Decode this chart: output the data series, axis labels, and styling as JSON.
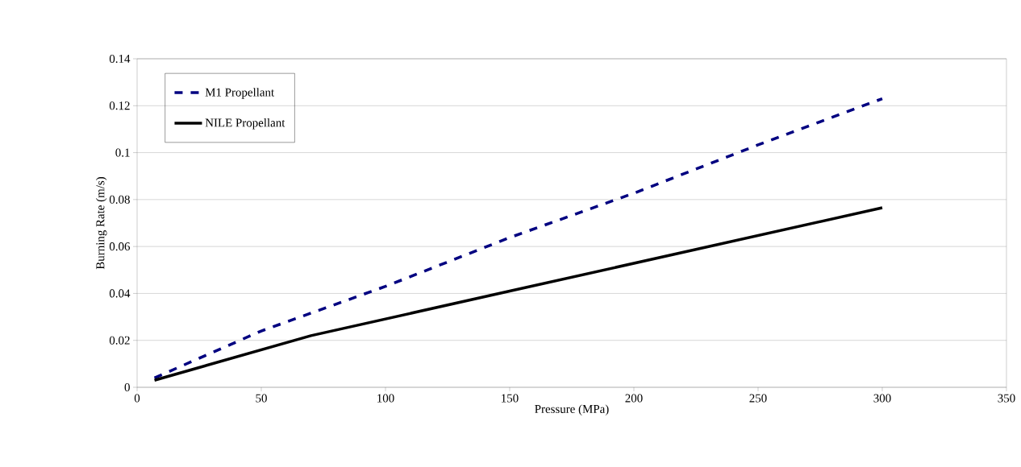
{
  "chart_data": {
    "type": "line",
    "xlabel": "Pressure (MPa)",
    "ylabel": "Burning Rate (m/s)",
    "xlim": [
      0,
      350
    ],
    "ylim": [
      0,
      0.14
    ],
    "xticks": [
      0,
      50,
      100,
      150,
      200,
      250,
      300,
      350
    ],
    "yticks": [
      0,
      0.02,
      0.04,
      0.06,
      0.08,
      0.1,
      0.12,
      0.14
    ],
    "grid": "y",
    "legend": "top left",
    "series": [
      {
        "name": "M1 Propellant",
        "color": "#000080",
        "line_style": "dashed",
        "x": [
          7,
          50,
          100,
          150,
          200,
          250,
          300
        ],
        "values": [
          0.004,
          0.024,
          0.043,
          0.0638,
          0.0827,
          0.1033,
          0.123
        ]
      },
      {
        "name": "NILE Propellant",
        "color": "#000000",
        "line_style": "solid",
        "x": [
          7,
          70,
          150,
          300
        ],
        "values": [
          0.003,
          0.022,
          0.041,
          0.0765
        ]
      }
    ]
  }
}
